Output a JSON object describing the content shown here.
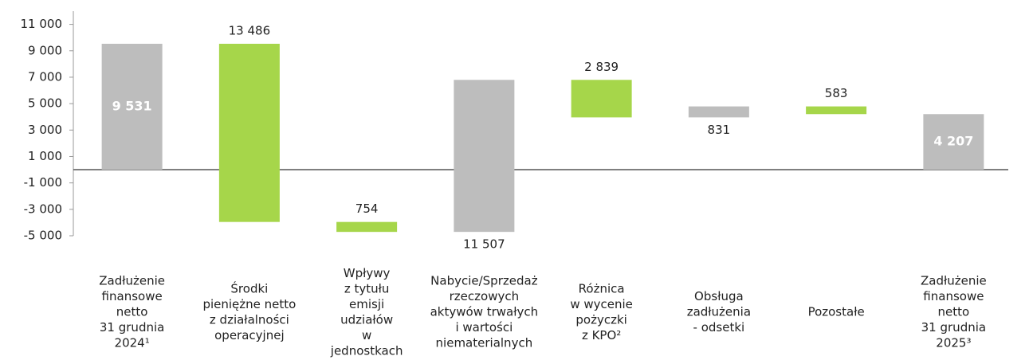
{
  "chart_data": {
    "type": "waterfall",
    "categories": [
      [
        "Zadłużenie",
        "finansowe",
        "netto",
        "31 grudnia",
        "2024¹"
      ],
      [
        "Środki",
        "pieniężne netto",
        "z działalności",
        "operacyjnej"
      ],
      [
        "Wpływy",
        "z tytułu",
        "emisji",
        "udziałów",
        "w",
        "jednostkach"
      ],
      [
        "Nabycie/Sprzedaż",
        "rzeczowych",
        "aktywów trwałych",
        "i wartości",
        "niematerialnych"
      ],
      [
        "Różnica",
        "w wycenie",
        "pożyczki",
        "z KPO²"
      ],
      [
        "Obsługa",
        "zadłużenia",
        "- odsetki"
      ],
      [
        "Pozostałe"
      ],
      [
        "Zadłużenie",
        "finansowe",
        "netto",
        "31 grudnia",
        "2025³"
      ]
    ],
    "values": [
      9531,
      13486,
      754,
      11507,
      2839,
      831,
      583,
      4207
    ],
    "value_labels": [
      "9 531",
      "13 486",
      "754",
      "11 507",
      "2 839",
      "831",
      "583",
      "4 207"
    ],
    "measure": [
      "total",
      "decrease",
      "decrease",
      "increase",
      "decrease",
      "increase",
      "decrease",
      "total"
    ],
    "colors": [
      "#bdbdbd",
      "#a6d64a",
      "#a6d64a",
      "#bdbdbd",
      "#a6d64a",
      "#bdbdbd",
      "#a6d64a",
      "#bdbdbd"
    ],
    "ylim": [
      -5000,
      12000
    ],
    "yticks": [
      {
        "value": 11000,
        "label": "11 000"
      },
      {
        "value": 9000,
        "label": "9 000"
      },
      {
        "value": 7000,
        "label": "7 000"
      },
      {
        "value": 5000,
        "label": "5 000"
      },
      {
        "value": 3000,
        "label": "3 000"
      },
      {
        "value": 1000,
        "label": "1 000"
      },
      {
        "value": -1000,
        "label": "-1 000"
      },
      {
        "value": -3000,
        "label": "-3 000"
      },
      {
        "value": -5000,
        "label": "-5 000"
      }
    ]
  }
}
